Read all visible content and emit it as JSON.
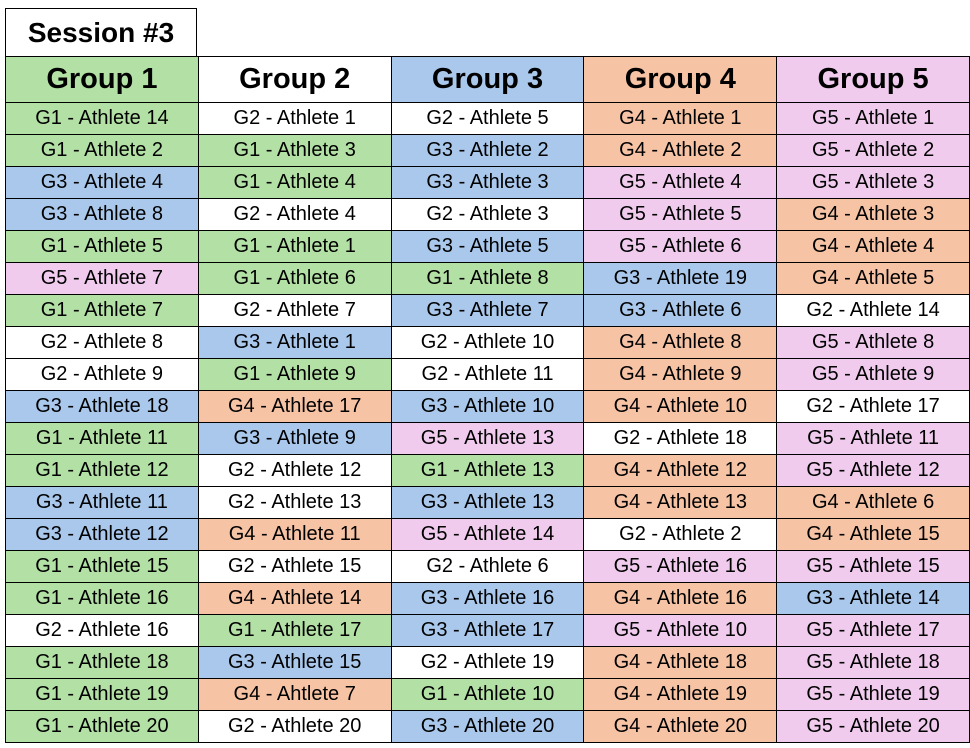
{
  "session_title": "Session #3",
  "colors": {
    "G1": "#b3e0a5",
    "G2": "#ffffff",
    "G3": "#a9c8ec",
    "G4": "#f6c3a5",
    "G5": "#f0cbee"
  },
  "headers": [
    {
      "label": "Group 1",
      "group": "G1"
    },
    {
      "label": "Group 2",
      "group": "G2"
    },
    {
      "label": "Group 3",
      "group": "G3"
    },
    {
      "label": "Group 4",
      "group": "G4"
    },
    {
      "label": "Group 5",
      "group": "G5"
    }
  ],
  "rows": [
    [
      "G1 - Athlete 14",
      "G2 - Athlete 1",
      "G2 - Athlete 5",
      "G4 - Athlete 1",
      "G5 - Athlete 1"
    ],
    [
      "G1 - Athlete 2",
      "G1 - Athlete 3",
      "G3 - Athlete 2",
      "G4 - Athlete 2",
      "G5 - Athlete 2"
    ],
    [
      "G3 - Athlete 4",
      "G1 - Athlete 4",
      "G3 - Athlete 3",
      "G5 - Athlete 4",
      "G5 - Athlete 3"
    ],
    [
      "G3 - Athlete 8",
      "G2 - Athlete 4",
      "G2 - Athlete 3",
      "G5 - Athlete 5",
      "G4 - Athlete 3"
    ],
    [
      "G1 - Athlete 5",
      "G1 - Athlete 1",
      "G3 - Athlete 5",
      "G5 - Athlete 6",
      "G4 - Athlete 4"
    ],
    [
      "G5 - Athlete 7",
      "G1 - Athlete 6",
      "G1 - Athlete 8",
      "G3 - Athlete 19",
      "G4 - Athlete 5"
    ],
    [
      "G1 - Athlete 7",
      "G2 - Athlete 7",
      "G3 - Athlete 7",
      "G3 - Athlete 6",
      "G2 - Athlete 14"
    ],
    [
      "G2 - Athlete 8",
      "G3 - Athlete 1",
      "G2 - Athlete 10",
      "G4 - Athlete 8",
      "G5 - Athlete 8"
    ],
    [
      "G2 - Athlete 9",
      "G1 - Athlete 9",
      "G2 - Athlete 11",
      "G4 - Athlete 9",
      "G5 - Athlete 9"
    ],
    [
      "G3 - Athlete 18",
      "G4 - Athlete 17",
      "G3 - Athlete 10",
      "G4 - Athlete 10",
      "G2 - Athlete 17"
    ],
    [
      "G1 - Athlete 11",
      "G3 - Athlete 9",
      "G5 - Athlete 13",
      "G2 - Athlete 18",
      "G5 - Athlete 11"
    ],
    [
      "G1 - Athlete 12",
      "G2 - Athlete 12",
      "G1 - Athlete 13",
      "G4 - Athlete 12",
      "G5 - Athlete 12"
    ],
    [
      "G3 - Athlete 11",
      "G2 - Athlete 13",
      "G3 - Athlete 13",
      "G4 - Athlete 13",
      "G4 - Athlete 6"
    ],
    [
      "G3 - Athlete 12",
      "G4 - Athlete 11",
      "G5 - Athlete 14",
      "G2 - Athlete 2",
      "G4 - Athlete 15"
    ],
    [
      "G1 - Athlete 15",
      "G2 - Athlete 15",
      "G2 - Athlete 6",
      "G5 - Athlete 16",
      "G5 - Athlete 15"
    ],
    [
      "G1 - Athlete 16",
      "G4 - Athlete 14",
      "G3 - Athlete 16",
      "G4 - Athlete 16",
      "G3 - Athlete 14"
    ],
    [
      "G2 - Athlete 16",
      "G1 - Athlete 17",
      "G3 - Athlete 17",
      "G5 - Athlete 10",
      "G5 - Athlete 17"
    ],
    [
      "G1 - Athlete 18",
      "G3 - Athlete 15",
      "G2 - Athlete 19",
      "G4 - Athlete 18",
      "G5 - Athlete 18"
    ],
    [
      "G1 - Athlete 19",
      "G4 - Ahtlete 7",
      "G1 - Athlete 10",
      "G4 - Athlete 19",
      "G5 - Athlete 19"
    ],
    [
      "G1 - Athlete 20",
      "G2 - Athlete 20",
      "G3 - Athlete 20",
      "G4 - Athlete 20",
      "G5 - Athlete 20"
    ]
  ]
}
